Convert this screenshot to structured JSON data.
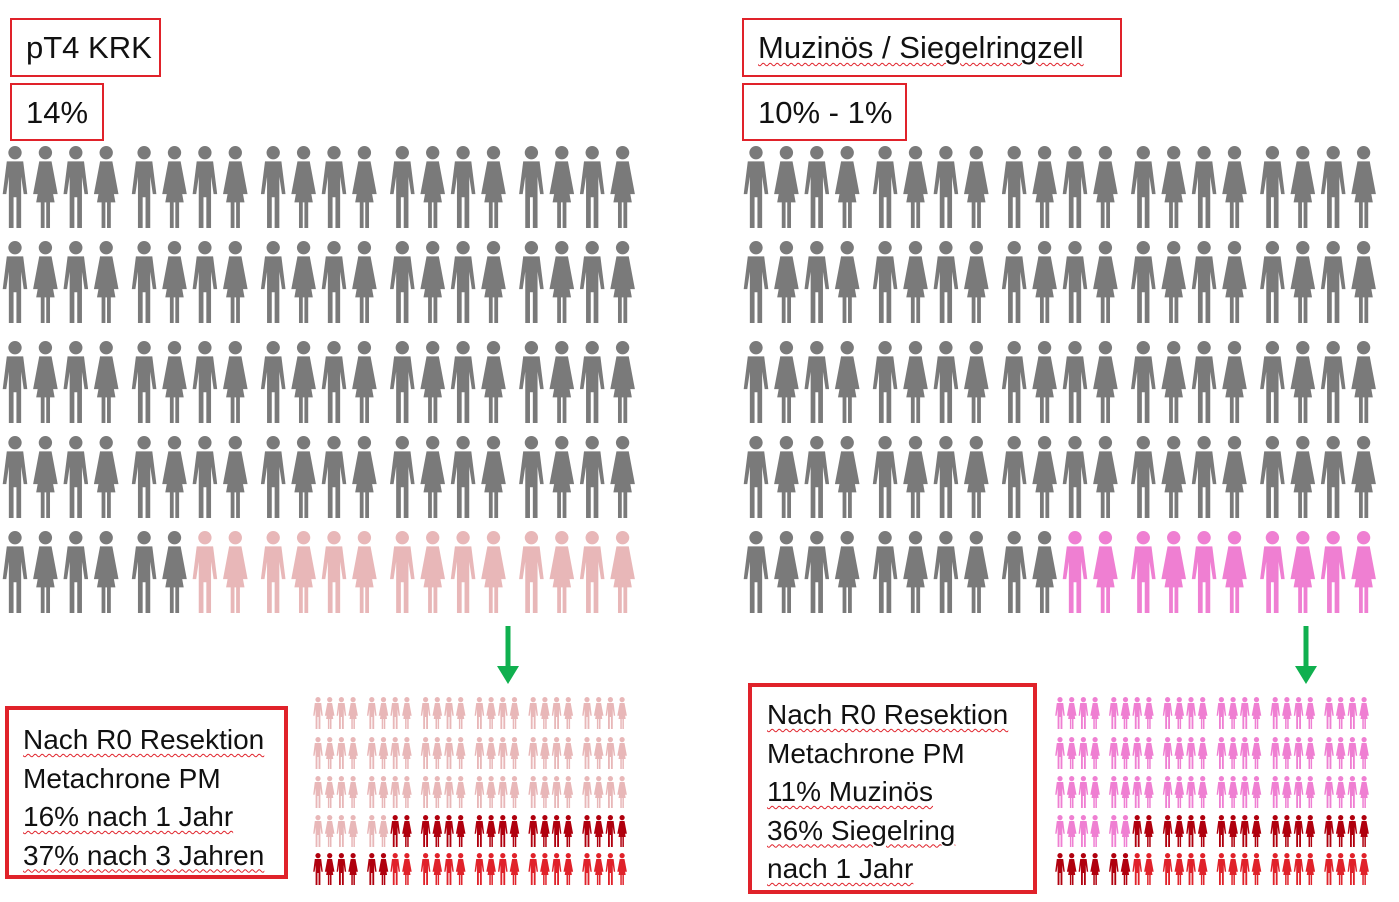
{
  "left": {
    "title": "pT4 KRK",
    "percent": "14%",
    "note_lines": [
      "Nach R0 Resektion",
      "Metachrone PM",
      "16% nach 1 Jahr",
      "37% nach 3 Jahren"
    ],
    "highlight_color": "#e3b6b7"
  },
  "right": {
    "title": "Muzinös / Siegelringzell",
    "percent": "10% - 1%",
    "note_lines": [
      "Nach R0 Resektion",
      "Metachrone PM",
      "11% Muzinös",
      "36% Siegelring",
      "nach 1 Jahr"
    ],
    "highlight_color": "#ef7fd2"
  },
  "colors": {
    "person_base": "#7a7a7a",
    "accent_red": "#e0222a",
    "arrow_green": "#10b04f",
    "dark_red": "#b0000e",
    "light_pink_left": "#e8b7b8",
    "light_pink_right": "#ef7fd2"
  },
  "icons": [
    "person-icon",
    "arrow-down-icon"
  ]
}
